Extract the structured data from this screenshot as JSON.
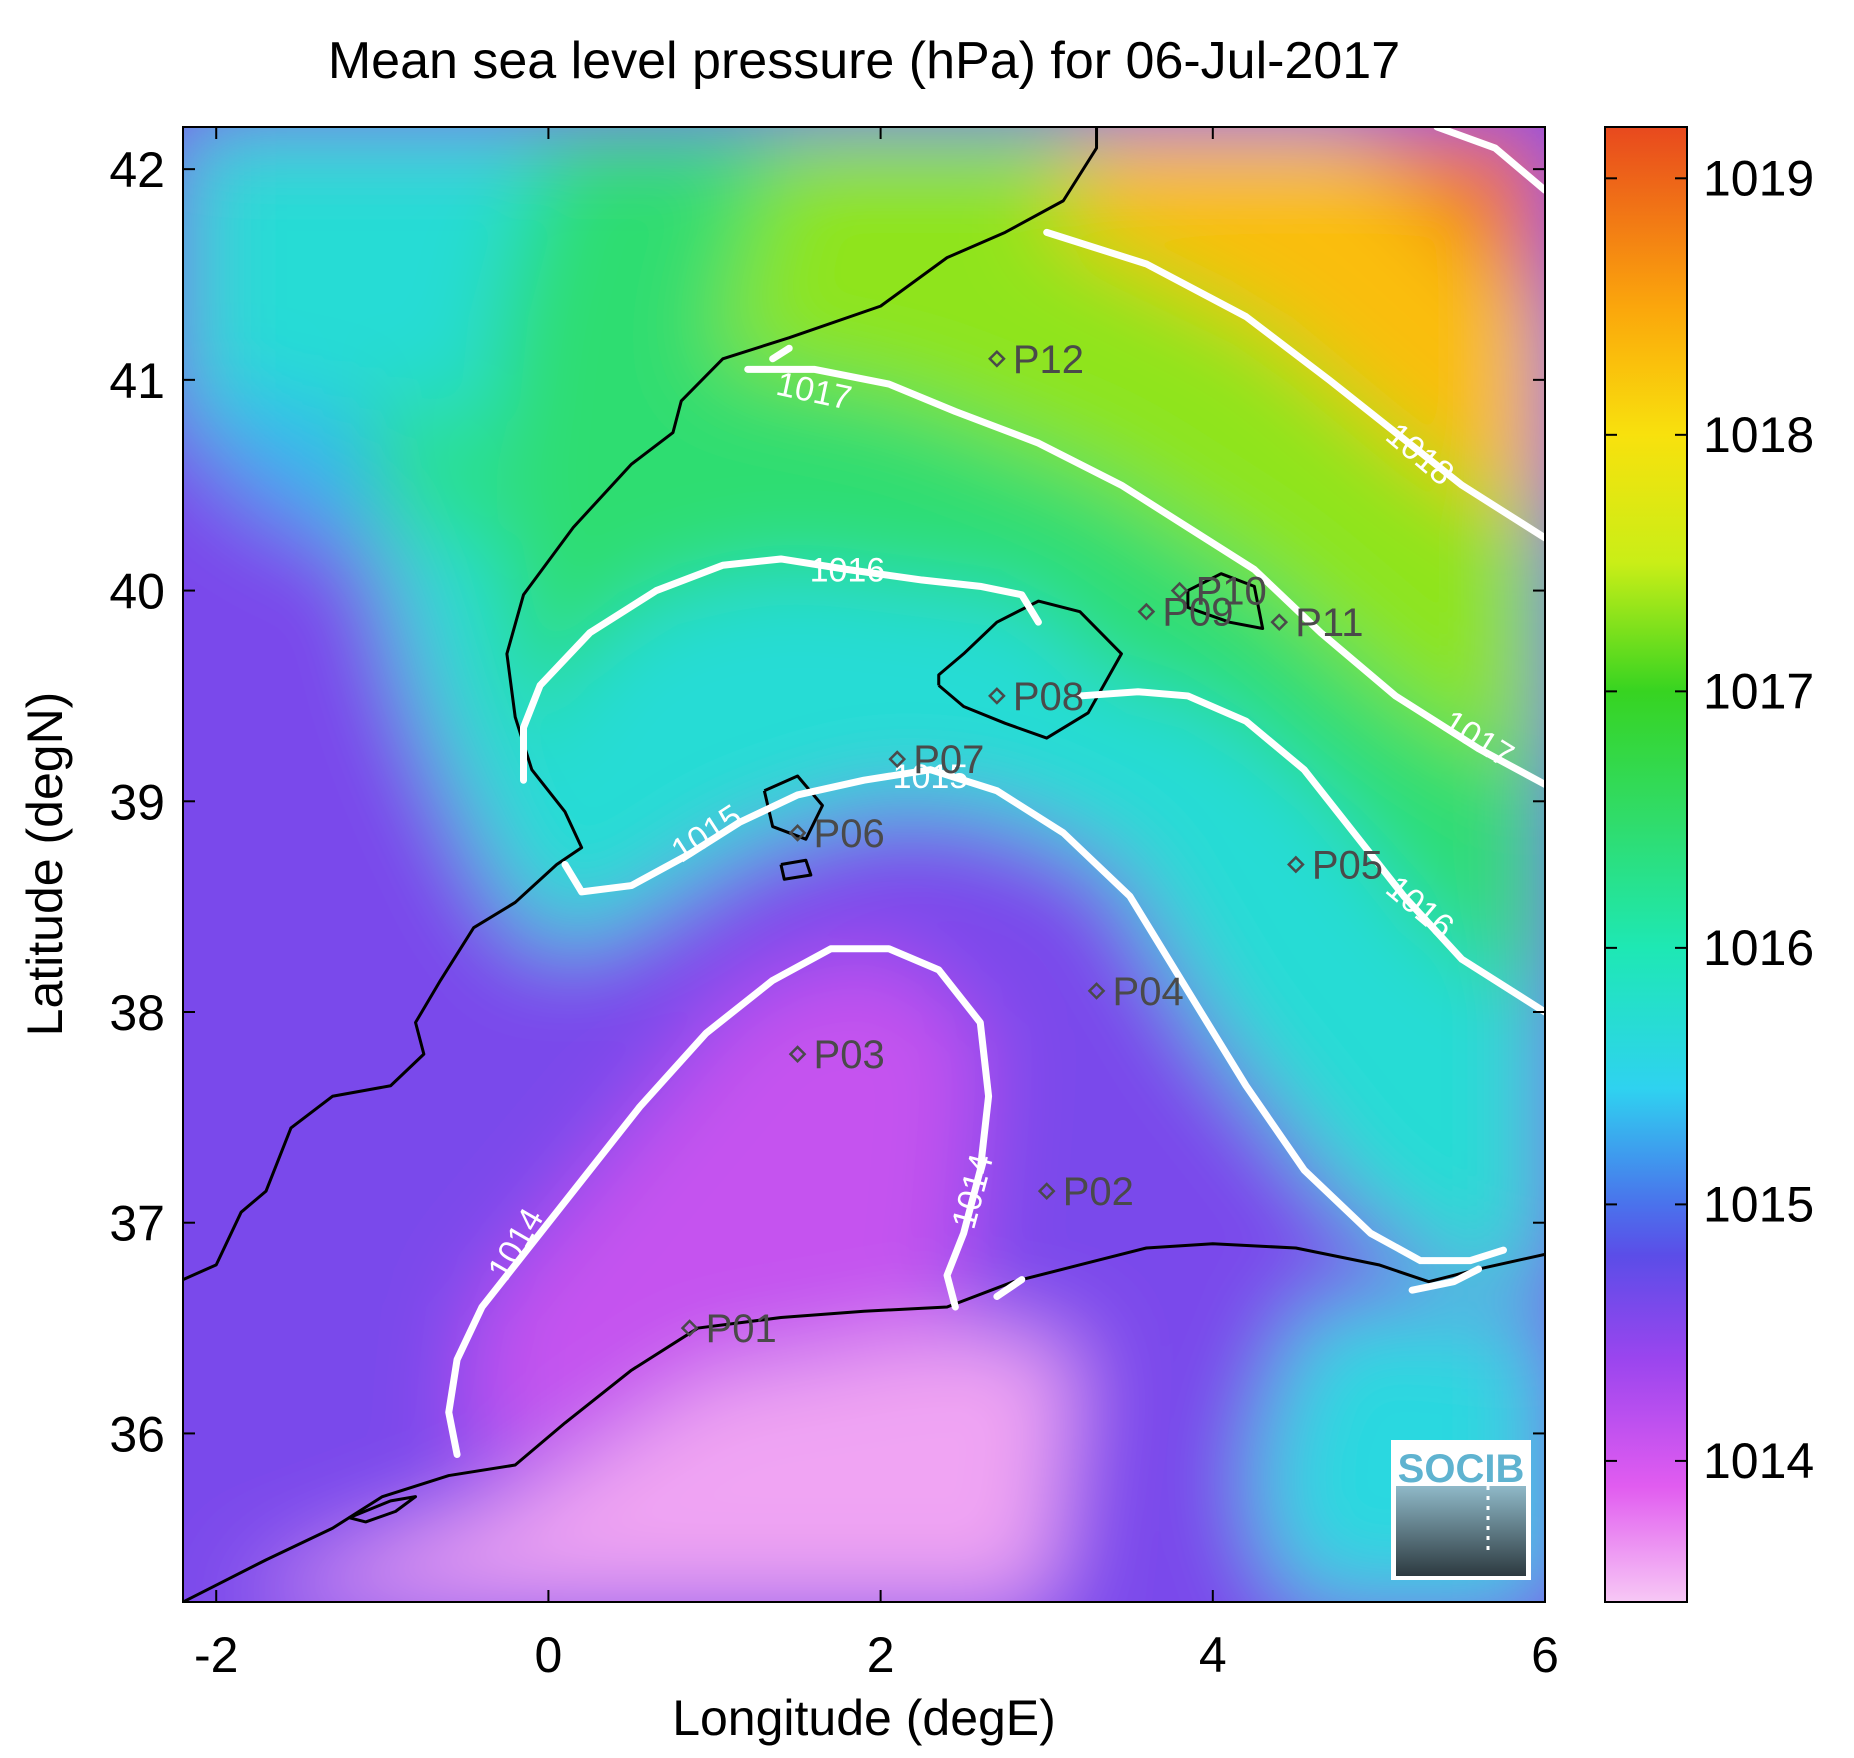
{
  "chart_data": {
    "type": "heatmap",
    "title": "Mean sea level pressure (hPa) for 06-Jul-2017",
    "xlabel": "Longitude (degE)",
    "ylabel": "Latitude (degN)",
    "xlim": [
      -2.2,
      6.0
    ],
    "ylim": [
      35.2,
      42.2
    ],
    "x_ticks": [
      -2,
      0,
      2,
      4,
      6
    ],
    "x_tick_labels": [
      "-2",
      "0",
      "2",
      "4",
      "6"
    ],
    "y_ticks": [
      36,
      37,
      38,
      39,
      40,
      41,
      42
    ],
    "y_tick_labels": [
      "36",
      "37",
      "38",
      "39",
      "40",
      "41",
      "42"
    ],
    "colorbar": {
      "min": 1013.45,
      "max": 1019.2,
      "ticks": [
        1014,
        1015,
        1016,
        1017,
        1018,
        1019
      ],
      "tick_labels": [
        "1014",
        "1015",
        "1016",
        "1017",
        "1018",
        "1019"
      ],
      "colormap": [
        {
          "v": 1013.45,
          "color": "#f7c8f5"
        },
        {
          "v": 1013.9,
          "color": "#e15cf0"
        },
        {
          "v": 1014.4,
          "color": "#9a45ee"
        },
        {
          "v": 1014.8,
          "color": "#5b4de8"
        },
        {
          "v": 1015.0,
          "color": "#4a72ec"
        },
        {
          "v": 1015.45,
          "color": "#2fd2f0"
        },
        {
          "v": 1016.0,
          "color": "#1ee8b4"
        },
        {
          "v": 1016.5,
          "color": "#30dc6a"
        },
        {
          "v": 1017.0,
          "color": "#37d421"
        },
        {
          "v": 1017.5,
          "color": "#c9ee17"
        },
        {
          "v": 1018.0,
          "color": "#f8e10d"
        },
        {
          "v": 1018.5,
          "color": "#fba60c"
        },
        {
          "v": 1019.2,
          "color": "#e8491e"
        }
      ]
    },
    "grid": false,
    "stations": [
      {
        "label": "P01",
        "lon": 0.85,
        "lat": 36.5
      },
      {
        "label": "P02",
        "lon": 3.0,
        "lat": 37.15
      },
      {
        "label": "P03",
        "lon": 1.5,
        "lat": 37.8
      },
      {
        "label": "P04",
        "lon": 3.3,
        "lat": 38.1
      },
      {
        "label": "P05",
        "lon": 4.5,
        "lat": 38.7
      },
      {
        "label": "P06",
        "lon": 1.5,
        "lat": 38.85
      },
      {
        "label": "P07",
        "lon": 2.1,
        "lat": 39.2
      },
      {
        "label": "P08",
        "lon": 2.7,
        "lat": 39.5
      },
      {
        "label": "P09",
        "lon": 3.6,
        "lat": 39.9
      },
      {
        "label": "P10",
        "lon": 3.8,
        "lat": 40.0
      },
      {
        "label": "P11",
        "lon": 4.4,
        "lat": 39.85
      },
      {
        "label": "P12",
        "lon": 2.7,
        "lat": 41.1
      }
    ],
    "contours": [
      {
        "level": 1014,
        "label": "1014",
        "segments": [
          [
            [
              -0.55,
              35.9
            ],
            [
              -0.6,
              36.1
            ],
            [
              -0.55,
              36.35
            ],
            [
              -0.4,
              36.6
            ],
            [
              -0.15,
              36.85
            ],
            [
              0.2,
              37.2
            ],
            [
              0.55,
              37.55
            ],
            [
              0.95,
              37.9
            ],
            [
              1.35,
              38.15
            ],
            [
              1.7,
              38.3
            ],
            [
              2.05,
              38.3
            ],
            [
              2.35,
              38.2
            ],
            [
              2.6,
              37.95
            ],
            [
              2.65,
              37.6
            ],
            [
              2.6,
              37.25
            ],
            [
              2.5,
              36.95
            ],
            [
              2.4,
              36.75
            ],
            [
              2.45,
              36.6
            ]
          ],
          [
            [
              2.7,
              36.65
            ],
            [
              2.85,
              36.73
            ]
          ]
        ],
        "labels": [
          {
            "lon": -0.2,
            "lat": 36.9,
            "angle": -60
          },
          {
            "lon": 2.55,
            "lat": 37.15,
            "angle": -75
          }
        ]
      },
      {
        "level": 1015,
        "label": "1015",
        "segments": [
          [
            [
              0.1,
              38.7
            ],
            [
              0.2,
              38.57
            ],
            [
              0.5,
              38.6
            ],
            [
              0.85,
              38.75
            ],
            [
              1.15,
              38.9
            ],
            [
              1.5,
              39.03
            ],
            [
              1.9,
              39.1
            ],
            [
              2.3,
              39.15
            ],
            [
              2.7,
              39.05
            ],
            [
              3.1,
              38.85
            ],
            [
              3.5,
              38.55
            ],
            [
              3.85,
              38.1
            ],
            [
              4.2,
              37.65
            ],
            [
              4.55,
              37.25
            ],
            [
              4.95,
              36.95
            ],
            [
              5.25,
              36.82
            ],
            [
              5.55,
              36.82
            ],
            [
              5.75,
              36.87
            ]
          ],
          [
            [
              5.2,
              36.68
            ],
            [
              5.45,
              36.72
            ],
            [
              5.6,
              36.78
            ]
          ]
        ],
        "labels": [
          {
            "lon": 0.95,
            "lat": 38.85,
            "angle": -33
          },
          {
            "lon": 2.3,
            "lat": 39.12,
            "angle": 0
          }
        ]
      },
      {
        "level": 1016,
        "label": "1016",
        "segments": [
          [
            [
              -0.15,
              39.1
            ],
            [
              -0.15,
              39.35
            ],
            [
              -0.05,
              39.55
            ],
            [
              0.25,
              39.8
            ],
            [
              0.65,
              40.0
            ],
            [
              1.05,
              40.12
            ],
            [
              1.4,
              40.15
            ],
            [
              1.8,
              40.1
            ],
            [
              2.25,
              40.05
            ],
            [
              2.6,
              40.02
            ],
            [
              2.85,
              39.98
            ],
            [
              2.95,
              39.85
            ]
          ],
          [
            [
              3.2,
              39.5
            ],
            [
              3.55,
              39.52
            ],
            [
              3.85,
              39.5
            ],
            [
              4.2,
              39.38
            ],
            [
              4.55,
              39.15
            ],
            [
              4.85,
              38.85
            ],
            [
              5.15,
              38.55
            ],
            [
              5.5,
              38.25
            ],
            [
              6.0,
              38.0
            ]
          ]
        ],
        "labels": [
          {
            "lon": 1.8,
            "lat": 40.1,
            "angle": 0
          },
          {
            "lon": 5.25,
            "lat": 38.5,
            "angle": 40
          }
        ]
      },
      {
        "level": 1017,
        "label": "1017",
        "segments": [
          [
            [
              1.2,
              41.05
            ],
            [
              1.6,
              41.05
            ],
            [
              2.05,
              40.98
            ],
            [
              2.45,
              40.85
            ],
            [
              2.95,
              40.7
            ],
            [
              3.45,
              40.5
            ],
            [
              3.85,
              40.3
            ],
            [
              4.25,
              40.1
            ],
            [
              4.65,
              39.8
            ],
            [
              5.1,
              39.5
            ],
            [
              5.6,
              39.25
            ],
            [
              6.0,
              39.08
            ]
          ],
          [
            [
              1.35,
              41.1
            ],
            [
              1.45,
              41.15
            ]
          ]
        ],
        "labels": [
          {
            "lon": 1.6,
            "lat": 40.95,
            "angle": 12
          },
          {
            "lon": 5.6,
            "lat": 39.3,
            "angle": 32
          }
        ]
      },
      {
        "level": 1018,
        "label": "1018",
        "segments": [
          [
            [
              3.0,
              41.7
            ],
            [
              3.6,
              41.55
            ],
            [
              4.2,
              41.3
            ],
            [
              4.7,
              41.0
            ],
            [
              5.1,
              40.75
            ],
            [
              5.5,
              40.5
            ],
            [
              6.0,
              40.25
            ]
          ],
          [
            [
              5.35,
              42.2
            ],
            [
              5.7,
              42.1
            ],
            [
              6.0,
              41.9
            ]
          ]
        ],
        "labels": [
          {
            "lon": 5.25,
            "lat": 40.65,
            "angle": 40
          }
        ]
      }
    ],
    "coastlines": [
      [
        [
          -2.2,
          36.73
        ],
        [
          -2.0,
          36.8
        ],
        [
          -1.85,
          37.05
        ],
        [
          -1.7,
          37.15
        ],
        [
          -1.55,
          37.45
        ],
        [
          -1.3,
          37.6
        ],
        [
          -0.95,
          37.65
        ],
        [
          -0.75,
          37.8
        ],
        [
          -0.8,
          37.95
        ],
        [
          -0.65,
          38.15
        ],
        [
          -0.45,
          38.4
        ],
        [
          -0.2,
          38.52
        ],
        [
          0.05,
          38.7
        ],
        [
          0.2,
          38.78
        ],
        [
          0.1,
          38.95
        ],
        [
          -0.1,
          39.15
        ],
        [
          -0.2,
          39.4
        ],
        [
          -0.25,
          39.7
        ],
        [
          -0.15,
          39.98
        ],
        [
          0.15,
          40.3
        ],
        [
          0.5,
          40.6
        ],
        [
          0.75,
          40.75
        ],
        [
          0.8,
          40.9
        ],
        [
          1.05,
          41.1
        ],
        [
          1.45,
          41.2
        ],
        [
          2.0,
          41.35
        ],
        [
          2.4,
          41.58
        ],
        [
          2.75,
          41.7
        ],
        [
          3.1,
          41.85
        ],
        [
          3.3,
          42.1
        ],
        [
          3.3,
          42.2
        ]
      ],
      [
        [
          -2.2,
          35.2
        ],
        [
          -1.95,
          35.3
        ],
        [
          -1.7,
          35.4
        ],
        [
          -1.3,
          35.55
        ],
        [
          -1.0,
          35.7
        ],
        [
          -0.6,
          35.8
        ],
        [
          -0.2,
          35.85
        ],
        [
          0.1,
          36.05
        ],
        [
          0.5,
          36.3
        ],
        [
          0.9,
          36.5
        ],
        [
          1.4,
          36.55
        ],
        [
          1.9,
          36.58
        ],
        [
          2.4,
          36.6
        ],
        [
          2.8,
          36.72
        ],
        [
          3.2,
          36.8
        ],
        [
          3.6,
          36.88
        ],
        [
          4.0,
          36.9
        ],
        [
          4.5,
          36.88
        ],
        [
          5.0,
          36.8
        ],
        [
          5.3,
          36.72
        ],
        [
          5.6,
          36.78
        ],
        [
          6.0,
          36.85
        ]
      ],
      [
        [
          2.35,
          39.55
        ],
        [
          2.5,
          39.45
        ],
        [
          2.75,
          39.37
        ],
        [
          3.0,
          39.3
        ],
        [
          3.25,
          39.42
        ],
        [
          3.45,
          39.7
        ],
        [
          3.2,
          39.9
        ],
        [
          2.95,
          39.95
        ],
        [
          2.7,
          39.85
        ],
        [
          2.5,
          39.7
        ],
        [
          2.35,
          39.6
        ],
        [
          2.35,
          39.55
        ]
      ],
      [
        [
          3.85,
          40.0
        ],
        [
          4.05,
          40.08
        ],
        [
          4.25,
          40.02
        ],
        [
          4.3,
          39.82
        ],
        [
          4.1,
          39.85
        ],
        [
          3.85,
          39.92
        ],
        [
          3.85,
          40.0
        ]
      ],
      [
        [
          1.3,
          39.05
        ],
        [
          1.5,
          39.12
        ],
        [
          1.65,
          38.98
        ],
        [
          1.55,
          38.82
        ],
        [
          1.35,
          38.88
        ],
        [
          1.3,
          39.05
        ]
      ],
      [
        [
          1.4,
          38.7
        ],
        [
          1.55,
          38.72
        ],
        [
          1.58,
          38.65
        ],
        [
          1.42,
          38.63
        ],
        [
          1.4,
          38.7
        ]
      ],
      [
        [
          -1.2,
          35.6
        ],
        [
          -0.95,
          35.68
        ],
        [
          -0.8,
          35.7
        ],
        [
          -0.92,
          35.63
        ],
        [
          -1.1,
          35.58
        ],
        [
          -1.2,
          35.6
        ]
      ]
    ],
    "logo_text": "SOCIB"
  }
}
